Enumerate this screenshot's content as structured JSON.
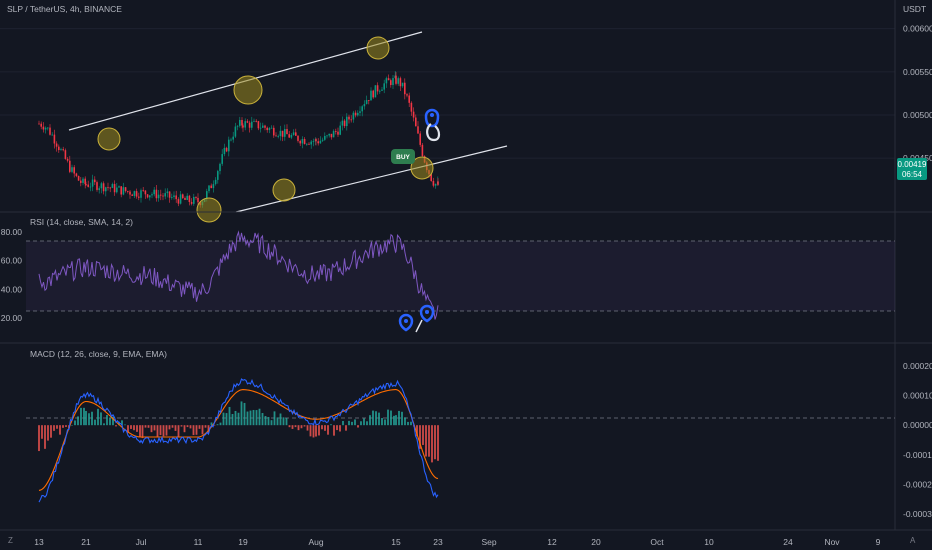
{
  "header": {
    "symbol_line": "SLP / TetherUS, 4h, BINANCE",
    "currency": "USDT"
  },
  "price_pane": {
    "y_ticks": [
      "0.00600",
      "0.00550",
      "0.00500",
      "0.00450"
    ],
    "last_price_badge": {
      "price": "0.00419",
      "countdown": "06:54",
      "color": "#089981"
    },
    "buy_marker": "BUY",
    "channel_color": "#ffffff",
    "highlight_color": "#9c8a1e"
  },
  "rsi_pane": {
    "title": "RSI (14, close, SMA, 14, 2)",
    "y_ticks": [
      "80.00",
      "60.00",
      "40.00",
      "20.00"
    ],
    "line_color": "#7e57c2"
  },
  "macd_pane": {
    "title": "MACD (12, 26, close, 9, EMA, EMA)",
    "y_ticks": [
      "0.00020",
      "0.00010",
      "0.00000",
      "-0.00010",
      "-0.00020",
      "-0.00030"
    ],
    "macd_color": "#2962ff",
    "signal_color": "#ff6d00"
  },
  "x_axis": {
    "ticks": [
      "13",
      "21",
      "Jul",
      "11",
      "19",
      "Aug",
      "15",
      "23",
      "Sep",
      "12",
      "20",
      "Oct",
      "10",
      "24",
      "Nov",
      "9"
    ]
  },
  "corner_buttons": {
    "left": "Z",
    "right": "A"
  },
  "chart_data": [
    {
      "type": "candlestick",
      "title": "SLP / TetherUS, 4h, BINANCE",
      "ylabel": "USDT",
      "ylim": [
        0.0039,
        0.0061
      ],
      "key_points": [
        {
          "x": "13",
          "y": 0.0049
        },
        {
          "x": "21",
          "y": 0.0042
        },
        {
          "x": "Jul",
          "y": 0.0041
        },
        {
          "x": "11",
          "y": 0.004
        },
        {
          "x": "19",
          "y": 0.0049
        },
        {
          "x": "Aug",
          "y": 0.0047
        },
        {
          "x": "15",
          "y": 0.0054
        },
        {
          "x": "23",
          "y": 0.00419
        }
      ],
      "last_price": 0.00419
    },
    {
      "type": "line",
      "title": "RSI (14, close, SMA, 14, 2)",
      "ylim": [
        20,
        80
      ],
      "bands": [
        30,
        70
      ],
      "key_points": [
        {
          "x": "13",
          "y": 45
        },
        {
          "x": "21",
          "y": 55
        },
        {
          "x": "Jul",
          "y": 50
        },
        {
          "x": "11",
          "y": 38
        },
        {
          "x": "19",
          "y": 75
        },
        {
          "x": "Aug",
          "y": 50
        },
        {
          "x": "15",
          "y": 72
        },
        {
          "x": "23",
          "y": 22
        }
      ]
    },
    {
      "type": "line",
      "title": "MACD (12, 26, close, 9, EMA, EMA)",
      "ylim": [
        -0.0003,
        0.0002
      ],
      "series": [
        {
          "name": "MACD",
          "key_points": [
            {
              "x": "13",
              "y": -0.00025
            },
            {
              "x": "21",
              "y": 0.0001
            },
            {
              "x": "Jul",
              "y": -5e-05
            },
            {
              "x": "11",
              "y": -5e-05
            },
            {
              "x": "19",
              "y": 0.00015
            },
            {
              "x": "Aug",
              "y": 1e-05
            },
            {
              "x": "15",
              "y": 0.00014
            },
            {
              "x": "23",
              "y": -0.00024
            }
          ]
        },
        {
          "name": "Signal",
          "key_points": [
            {
              "x": "13",
              "y": -0.00022
            },
            {
              "x": "21",
              "y": 8e-05
            },
            {
              "x": "Jul",
              "y": -4e-05
            },
            {
              "x": "11",
              "y": -4e-05
            },
            {
              "x": "19",
              "y": 0.00012
            },
            {
              "x": "Aug",
              "y": 2e-05
            },
            {
              "x": "15",
              "y": 0.00012
            },
            {
              "x": "23",
              "y": -0.00018
            }
          ]
        }
      ]
    }
  ]
}
